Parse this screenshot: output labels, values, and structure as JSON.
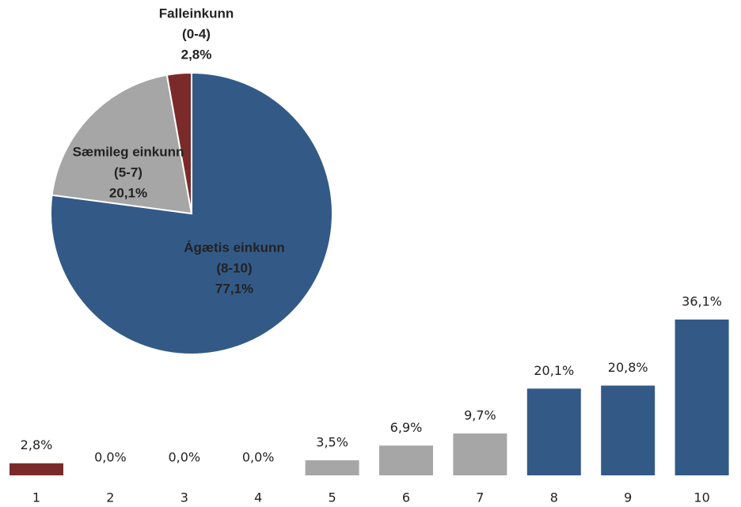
{
  "chart_data": [
    {
      "type": "pie",
      "categories": [
        "Ágætis einkunn",
        "Sæmileg einkunn",
        "Falleinkunn"
      ],
      "category_ranges": [
        "(8-10)",
        "(5-7)",
        "(0-4)"
      ],
      "values": [
        77.1,
        20.1,
        2.8
      ],
      "value_labels": [
        "77,1%",
        "20,1%",
        "2,8%"
      ],
      "colors": [
        "#335a87",
        "#a6a6a6",
        "#7b2a2a"
      ]
    },
    {
      "type": "bar",
      "categories": [
        "1",
        "2",
        "3",
        "4",
        "5",
        "6",
        "7",
        "8",
        "9",
        "10"
      ],
      "values": [
        2.8,
        0.0,
        0.0,
        0.0,
        3.5,
        6.9,
        9.7,
        20.1,
        20.8,
        36.1
      ],
      "value_labels": [
        "2,8%",
        "0,0%",
        "0,0%",
        "0,0%",
        "3,5%",
        "6,9%",
        "9,7%",
        "20,1%",
        "20,8%",
        "36,1%"
      ],
      "colors": [
        "#7b2a2a",
        "#7b2a2a",
        "#7b2a2a",
        "#7b2a2a",
        "#a6a6a6",
        "#a6a6a6",
        "#a6a6a6",
        "#335a87",
        "#335a87",
        "#335a87"
      ]
    }
  ]
}
